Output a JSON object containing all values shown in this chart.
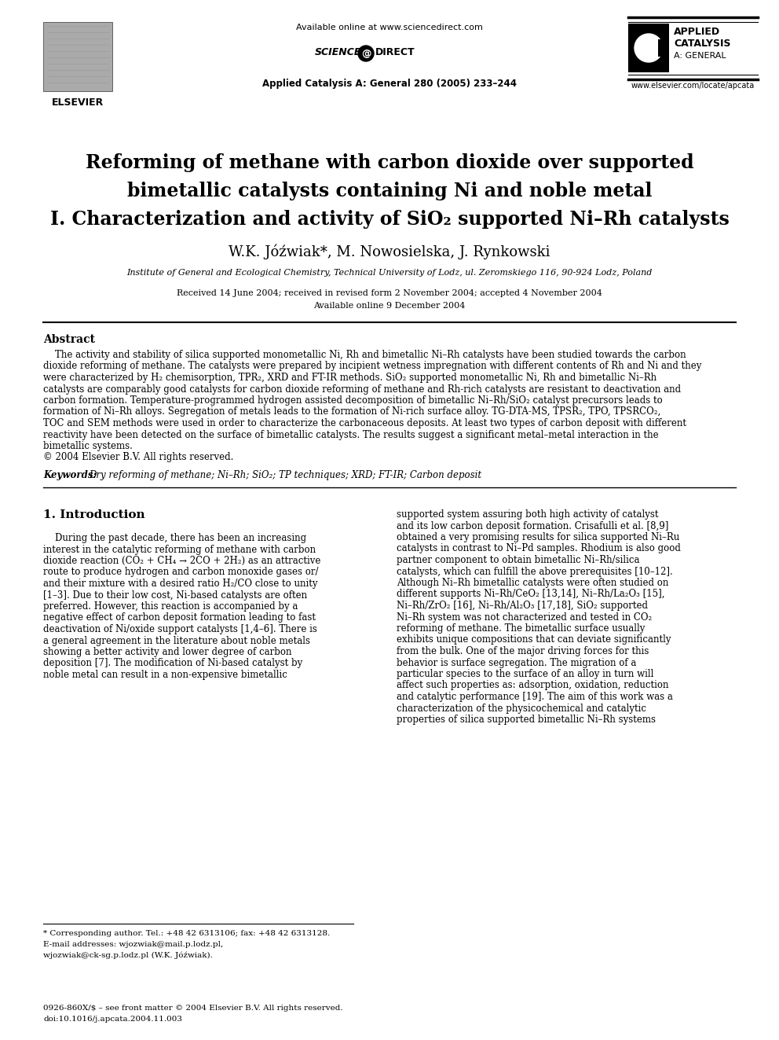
{
  "bg_color": "#ffffff",
  "title_lines": [
    "Reforming of methane with carbon dioxide over supported",
    "bimetallic catalysts containing Ni and noble metal",
    "I. Characterization and activity of SiO₂ supported Ni–Rh catalysts"
  ],
  "authors": "W.K. Jóźwiak*, M. Nowosielska, J. Rynkowski",
  "affiliation": "Institute of General and Ecological Chemistry, Technical University of Lodz, ul. Zeromskiego 116, 90-924 Lodz, Poland",
  "dates_line1": "Received 14 June 2004; received in revised form 2 November 2004; accepted 4 November 2004",
  "dates_line2": "Available online 9 December 2004",
  "journal_info": "Applied Catalysis A: General 280 (2005) 233–244",
  "available_online": "Available online at www.sciencedirect.com",
  "elsevier_label": "ELSEVIER",
  "journal_url": "www.elsevier.com/locate/apcata",
  "abstract_title": "Abstract",
  "abstract_text_lines": [
    "    The activity and stability of silica supported monometallic Ni, Rh and bimetallic Ni–Rh catalysts have been studied towards the carbon",
    "dioxide reforming of methane. The catalysts were prepared by incipient wetness impregnation with different contents of Rh and Ni and they",
    "were characterized by H₂ chemisorption, TPR₂, XRD and FT-IR methods. SiO₂ supported monometallic Ni, Rh and bimetallic Ni–Rh",
    "catalysts are comparably good catalysts for carbon dioxide reforming of methane and Rh-rich catalysts are resistant to deactivation and",
    "carbon formation. Temperature-programmed hydrogen assisted decomposition of bimetallic Ni–Rh/SiO₂ catalyst precursors leads to",
    "formation of Ni–Rh alloys. Segregation of metals leads to the formation of Ni-rich surface alloy. TG-DTA-MS, TPSR₂, TPO, TPSRCO₂,",
    "TOC and SEM methods were used in order to characterize the carbonaceous deposits. At least two types of carbon deposit with different",
    "reactivity have been detected on the surface of bimetallic catalysts. The results suggest a significant metal–metal interaction in the",
    "bimetallic systems.",
    "© 2004 Elsevier B.V. All rights reserved."
  ],
  "keywords_label": "Keywords:",
  "keywords_text": "Dry reforming of methane; Ni–Rh; SiO₂; TP techniques; XRD; FT-IR; Carbon deposit",
  "section1_title": "1. Introduction",
  "intro_left_lines": [
    "    During the past decade, there has been an increasing",
    "interest in the catalytic reforming of methane with carbon",
    "dioxide reaction (CO₂ + CH₄ → 2CO + 2H₂) as an attractive",
    "route to produce hydrogen and carbon monoxide gases or/",
    "and their mixture with a desired ratio H₂/CO close to unity",
    "[1–3]. Due to their low cost, Ni-based catalysts are often",
    "preferred. However, this reaction is accompanied by a",
    "negative effect of carbon deposit formation leading to fast",
    "deactivation of Ni/oxide support catalysts [1,4–6]. There is",
    "a general agreement in the literature about noble metals",
    "showing a better activity and lower degree of carbon",
    "deposition [7]. The modification of Ni-based catalyst by",
    "noble metal can result in a non-expensive bimetallic"
  ],
  "intro_right_lines": [
    "supported system assuring both high activity of catalyst",
    "and its low carbon deposit formation. Crisafulli et al. [8,9]",
    "obtained a very promising results for silica supported Ni–Ru",
    "catalysts in contrast to Ni–Pd samples. Rhodium is also good",
    "partner component to obtain bimetallic Ni–Rh/silica",
    "catalysts, which can fulfill the above prerequisites [10–12].",
    "Although Ni–Rh bimetallic catalysts were often studied on",
    "different supports Ni–Rh/CeO₂ [13,14], Ni–Rh/La₂O₃ [15],",
    "Ni–Rh/ZrO₂ [16], Ni–Rh/Al₂O₃ [17,18], SiO₂ supported",
    "Ni–Rh system was not characterized and tested in CO₂",
    "reforming of methane. The bimetallic surface usually",
    "exhibits unique compositions that can deviate significantly",
    "from the bulk. One of the major driving forces for this",
    "behavior is surface segregation. The migration of a",
    "particular species to the surface of an alloy in turn will",
    "affect such properties as: adsorption, oxidation, reduction",
    "and catalytic performance [19]. The aim of this work was a",
    "characterization of the physicochemical and catalytic",
    "properties of silica supported bimetallic Ni–Rh systems"
  ],
  "footnote_line1": "* Corresponding author. Tel.: +48 42 6313106; fax: +48 42 6313128.",
  "footnote_line2": "E-mail addresses: wjozwiak@mail.p.lodz.pl,",
  "footnote_line3": "wjozwiak@ck-sg.p.lodz.pl (W.K. Jóźwiak).",
  "bottom_line1": "0926-860X/$ – see front matter © 2004 Elsevier B.V. All rights reserved.",
  "bottom_line2": "doi:10.1016/j.apcata.2004.11.003"
}
